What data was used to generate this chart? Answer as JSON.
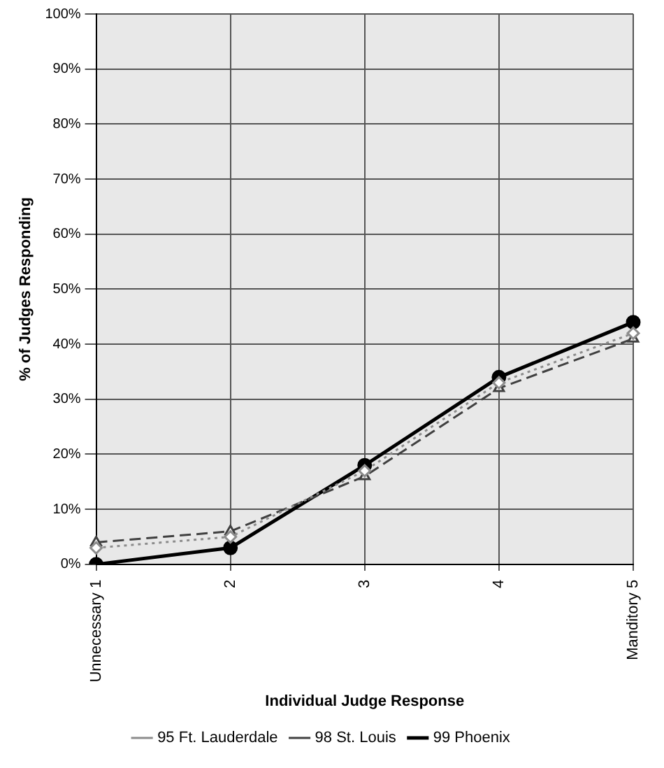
{
  "chart_data": {
    "type": "line",
    "xlabel": "Individual Judge Response",
    "ylabel": "% of Judges Responding",
    "categories": [
      "Unnecessary 1",
      "2",
      "3",
      "4",
      "Manditory 5"
    ],
    "series": [
      {
        "name": "95 Ft. Lauderdale",
        "color": "#8c8c8c",
        "marker": "diamond",
        "line_style": "dotted",
        "values": [
          3,
          5,
          17,
          33,
          42
        ]
      },
      {
        "name": "98 St. Louis",
        "color": "#404040",
        "marker": "triangle",
        "line_style": "dashed",
        "values": [
          4,
          6,
          16,
          32,
          41
        ]
      },
      {
        "name": "99 Phoenix",
        "color": "#000000",
        "marker": "circle",
        "line_style": "solid",
        "values": [
          0,
          3,
          18,
          34,
          44
        ]
      }
    ],
    "ylim": [
      0,
      100
    ],
    "yticks": [
      {
        "value": 0,
        "label": "0%"
      },
      {
        "value": 10,
        "label": "10%"
      },
      {
        "value": 20,
        "label": "20%"
      },
      {
        "value": 30,
        "label": "30%"
      },
      {
        "value": 40,
        "label": "40%"
      },
      {
        "value": 50,
        "label": "50%"
      },
      {
        "value": 60,
        "label": "60%"
      },
      {
        "value": 70,
        "label": "70%"
      },
      {
        "value": 80,
        "label": "80%"
      },
      {
        "value": 90,
        "label": "90%"
      },
      {
        "value": 100,
        "label": "100%"
      }
    ],
    "grid": true,
    "legend": "bottom"
  }
}
